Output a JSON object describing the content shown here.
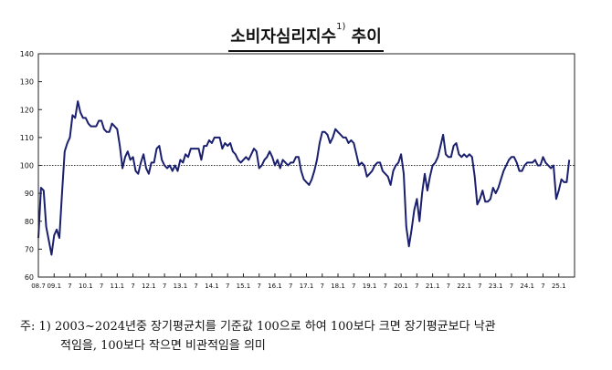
{
  "title": {
    "main": "소비자심리지수",
    "sup": "1)",
    "suffix": "추이"
  },
  "chart_data": {
    "type": "line",
    "ylim": [
      60,
      140
    ],
    "yticks": [
      60,
      70,
      80,
      90,
      100,
      110,
      120,
      130,
      140
    ],
    "reference_line": 100,
    "grid": false,
    "x_range": [
      0,
      204
    ],
    "xtick_labels": [
      {
        "x": 0,
        "label": "08.7"
      },
      {
        "x": 6,
        "label": "09.1"
      },
      {
        "x": 12,
        "label": "7"
      },
      {
        "x": 18,
        "label": "10.1"
      },
      {
        "x": 24,
        "label": "7"
      },
      {
        "x": 30,
        "label": "11.1"
      },
      {
        "x": 36,
        "label": "7"
      },
      {
        "x": 42,
        "label": "12.1"
      },
      {
        "x": 48,
        "label": "7"
      },
      {
        "x": 54,
        "label": "13.1"
      },
      {
        "x": 60,
        "label": "7"
      },
      {
        "x": 66,
        "label": "14.1"
      },
      {
        "x": 72,
        "label": "7"
      },
      {
        "x": 78,
        "label": "15.1"
      },
      {
        "x": 84,
        "label": "7"
      },
      {
        "x": 90,
        "label": "16.1"
      },
      {
        "x": 96,
        "label": "7"
      },
      {
        "x": 102,
        "label": "17.1"
      },
      {
        "x": 108,
        "label": "7"
      },
      {
        "x": 114,
        "label": "18.1"
      },
      {
        "x": 120,
        "label": "7"
      },
      {
        "x": 126,
        "label": "19.1"
      },
      {
        "x": 132,
        "label": "7"
      },
      {
        "x": 138,
        "label": "20.1"
      },
      {
        "x": 144,
        "label": "7"
      },
      {
        "x": 150,
        "label": "21.1"
      },
      {
        "x": 156,
        "label": "7"
      },
      {
        "x": 162,
        "label": "22.1"
      },
      {
        "x": 168,
        "label": "7"
      },
      {
        "x": 174,
        "label": "23.1"
      },
      {
        "x": 180,
        "label": "7"
      },
      {
        "x": 186,
        "label": "24.1"
      },
      {
        "x": 192,
        "label": "7"
      },
      {
        "x": 198,
        "label": "25.1"
      }
    ],
    "series": [
      {
        "color": "#1a1f6e",
        "points": [
          [
            0,
            74
          ],
          [
            1,
            92
          ],
          [
            2,
            91
          ],
          [
            3,
            78
          ],
          [
            4,
            73
          ],
          [
            5,
            68
          ],
          [
            6,
            75
          ],
          [
            7,
            77
          ],
          [
            8,
            74
          ],
          [
            9,
            90
          ],
          [
            10,
            105
          ],
          [
            11,
            108
          ],
          [
            12,
            110
          ],
          [
            13,
            118
          ],
          [
            14,
            117
          ],
          [
            15,
            123
          ],
          [
            16,
            119
          ],
          [
            17,
            117
          ],
          [
            18,
            117
          ],
          [
            19,
            115
          ],
          [
            20,
            114
          ],
          [
            21,
            114
          ],
          [
            22,
            114
          ],
          [
            23,
            116
          ],
          [
            24,
            116
          ],
          [
            25,
            113
          ],
          [
            26,
            112
          ],
          [
            27,
            112
          ],
          [
            28,
            115
          ],
          [
            29,
            114
          ],
          [
            30,
            113
          ],
          [
            31,
            107
          ],
          [
            32,
            99
          ],
          [
            33,
            103
          ],
          [
            34,
            105
          ],
          [
            35,
            102
          ],
          [
            36,
            103
          ],
          [
            37,
            98
          ],
          [
            38,
            97
          ],
          [
            39,
            101
          ],
          [
            40,
            104
          ],
          [
            41,
            99
          ],
          [
            42,
            97
          ],
          [
            43,
            101
          ],
          [
            44,
            101
          ],
          [
            45,
            106
          ],
          [
            46,
            107
          ],
          [
            47,
            102
          ],
          [
            48,
            100
          ],
          [
            49,
            99
          ],
          [
            50,
            100
          ],
          [
            51,
            98
          ],
          [
            52,
            100
          ],
          [
            53,
            98
          ],
          [
            54,
            102
          ],
          [
            55,
            101
          ],
          [
            56,
            104
          ],
          [
            57,
            103
          ],
          [
            58,
            106
          ],
          [
            59,
            106
          ],
          [
            60,
            106
          ],
          [
            61,
            106
          ],
          [
            62,
            102
          ],
          [
            63,
            107
          ],
          [
            64,
            107
          ],
          [
            65,
            109
          ],
          [
            66,
            108
          ],
          [
            67,
            110
          ],
          [
            68,
            110
          ],
          [
            69,
            110
          ],
          [
            70,
            106
          ],
          [
            71,
            108
          ],
          [
            72,
            107
          ],
          [
            73,
            108
          ],
          [
            74,
            105
          ],
          [
            75,
            104
          ],
          [
            76,
            102
          ],
          [
            77,
            101
          ],
          [
            78,
            102
          ],
          [
            79,
            103
          ],
          [
            80,
            102
          ],
          [
            81,
            104
          ],
          [
            82,
            106
          ],
          [
            83,
            105
          ],
          [
            84,
            99
          ],
          [
            85,
            100
          ],
          [
            86,
            102
          ],
          [
            87,
            103
          ],
          [
            88,
            105
          ],
          [
            89,
            103
          ],
          [
            90,
            100
          ],
          [
            91,
            102
          ],
          [
            92,
            99
          ],
          [
            93,
            102
          ],
          [
            94,
            101
          ],
          [
            95,
            100
          ],
          [
            96,
            101
          ],
          [
            97,
            101
          ],
          [
            98,
            103
          ],
          [
            99,
            103
          ],
          [
            100,
            98
          ],
          [
            101,
            95
          ],
          [
            102,
            94
          ],
          [
            103,
            93
          ],
          [
            104,
            95
          ],
          [
            105,
            98
          ],
          [
            106,
            102
          ],
          [
            107,
            108
          ],
          [
            108,
            112
          ],
          [
            109,
            112
          ],
          [
            110,
            111
          ],
          [
            111,
            108
          ],
          [
            112,
            110
          ],
          [
            113,
            113
          ],
          [
            114,
            112
          ],
          [
            115,
            111
          ],
          [
            116,
            110
          ],
          [
            117,
            110
          ],
          [
            118,
            108
          ],
          [
            119,
            109
          ],
          [
            120,
            108
          ],
          [
            121,
            104
          ],
          [
            122,
            100
          ],
          [
            123,
            101
          ],
          [
            124,
            100
          ],
          [
            125,
            96
          ],
          [
            126,
            97
          ],
          [
            127,
            98
          ],
          [
            128,
            100
          ],
          [
            129,
            101
          ],
          [
            130,
            101
          ],
          [
            131,
            98
          ],
          [
            132,
            97
          ],
          [
            133,
            96
          ],
          [
            134,
            93
          ],
          [
            135,
            98
          ],
          [
            136,
            100
          ],
          [
            137,
            101
          ],
          [
            138,
            104
          ],
          [
            139,
            97
          ],
          [
            140,
            78
          ],
          [
            141,
            71
          ],
          [
            142,
            77
          ],
          [
            143,
            84
          ],
          [
            144,
            88
          ],
          [
            145,
            80
          ],
          [
            146,
            90
          ],
          [
            147,
            97
          ],
          [
            148,
            91
          ],
          [
            149,
            96
          ],
          [
            150,
            100
          ],
          [
            151,
            101
          ],
          [
            152,
            103
          ],
          [
            153,
            107
          ],
          [
            154,
            111
          ],
          [
            155,
            104
          ],
          [
            156,
            103
          ],
          [
            157,
            103
          ],
          [
            158,
            107
          ],
          [
            159,
            108
          ],
          [
            160,
            104
          ],
          [
            161,
            103
          ],
          [
            162,
            104
          ],
          [
            163,
            103
          ],
          [
            164,
            104
          ],
          [
            165,
            103
          ],
          [
            166,
            96
          ],
          [
            167,
            86
          ],
          [
            168,
            88
          ],
          [
            169,
            91
          ],
          [
            170,
            87
          ],
          [
            171,
            87
          ],
          [
            172,
            88
          ],
          [
            173,
            92
          ],
          [
            174,
            90
          ],
          [
            175,
            92
          ],
          [
            176,
            95
          ],
          [
            177,
            98
          ],
          [
            178,
            100
          ],
          [
            179,
            102
          ],
          [
            180,
            103
          ],
          [
            181,
            103
          ],
          [
            182,
            101
          ],
          [
            183,
            98
          ],
          [
            184,
            98
          ],
          [
            185,
            100
          ],
          [
            186,
            101
          ],
          [
            187,
            101
          ],
          [
            188,
            101
          ],
          [
            189,
            102
          ],
          [
            190,
            100
          ],
          [
            191,
            100
          ],
          [
            192,
            103
          ],
          [
            193,
            101
          ],
          [
            194,
            100
          ],
          [
            195,
            99
          ],
          [
            196,
            100
          ],
          [
            197,
            88
          ],
          [
            198,
            91
          ],
          [
            199,
            95
          ],
          [
            200,
            94
          ],
          [
            201,
            94
          ],
          [
            202,
            102
          ]
        ]
      }
    ]
  },
  "note": {
    "line1": "주: 1) 2003~2024년중 장기평균치를 기준값 100으로 하여 100보다 크면 장기평균보다 낙관",
    "line2": "적임을, 100보다 작으면 비관적임을 의미"
  }
}
